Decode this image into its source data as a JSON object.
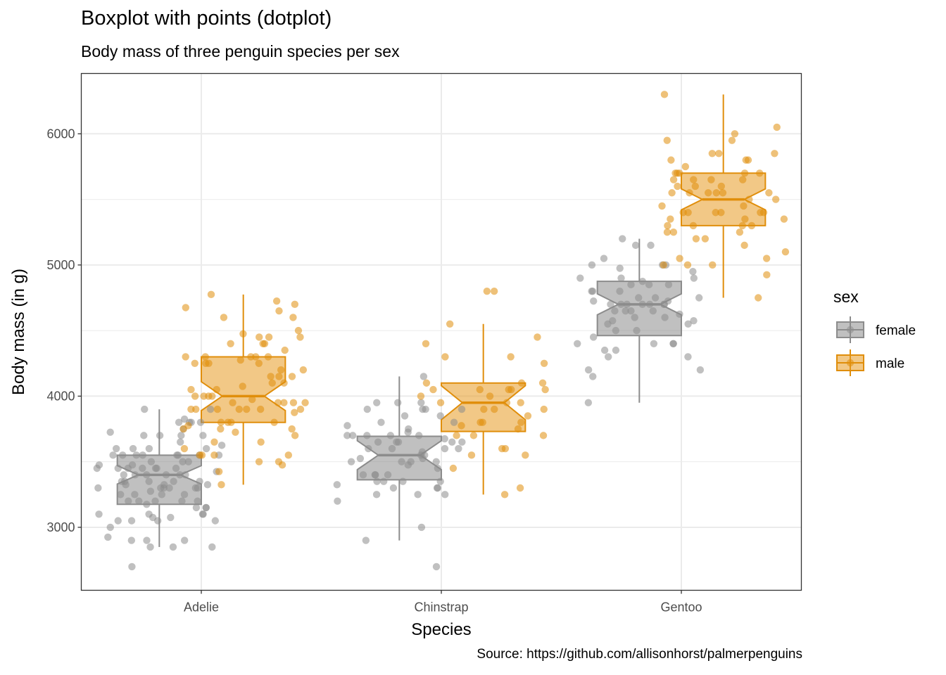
{
  "title": "Boxplot with points (dotplot)",
  "subtitle": "Body mass of three penguin species per sex",
  "caption": "Source: https://github.com/allisonhorst/palmerpenguins",
  "colors": {
    "female": "#8c8c8c",
    "male": "#e08e0b",
    "grid": "#ebebeb",
    "panel_border": "#333333"
  },
  "chart_data": {
    "type": "boxplot",
    "notched": true,
    "with_points": true,
    "xlabel": "Species",
    "ylabel": "Body mass (in g)",
    "categories": [
      "Adelie",
      "Chinstrap",
      "Gentoo"
    ],
    "ylim": [
      2520,
      6460
    ],
    "yticks": [
      3000,
      4000,
      5000,
      6000
    ],
    "grid": true,
    "legend": {
      "title": "sex",
      "position": "right",
      "entries": [
        "female",
        "male"
      ]
    },
    "series": [
      {
        "name": "female",
        "color": "#8c8c8c",
        "boxes": [
          {
            "category": "Adelie",
            "whisker_low": 2850,
            "q1": 3175,
            "median": 3400,
            "q3": 3550,
            "whisker_high": 3900,
            "notch_low": 3330,
            "notch_high": 3470
          },
          {
            "category": "Chinstrap",
            "whisker_low": 2900,
            "q1": 3362,
            "median": 3550,
            "q3": 3694,
            "whisker_high": 4150,
            "notch_low": 3440,
            "notch_high": 3660
          },
          {
            "category": "Gentoo",
            "whisker_low": 3950,
            "q1": 4462,
            "median": 4700,
            "q3": 4875,
            "whisker_high": 5200,
            "notch_low": 4620,
            "notch_high": 4780
          }
        ],
        "points": [
          [
            0,
            [
              3800,
              3250,
              3450,
              3625,
              3200,
              3700,
              3450,
              3325,
              3400,
              3800,
              3800,
              3200,
              3150,
              3250,
              3300,
              3325,
              3550,
              3300,
              3150,
              3100,
              3000,
              3450,
              3500,
              3450,
              2900,
              3550,
              2850,
              3150,
              3600,
              2850,
              3350,
              3050,
              3600,
              3550,
              3700,
              3700,
              3550,
              3200,
              3800,
              3350,
              3500,
              3600,
              3550,
              3400,
              3300,
              3700,
              2900,
              3725,
              3075,
              2925,
              3750,
              3175,
              3825,
              3200,
              3900,
              2900,
              3350,
              3050,
              3275,
              3475,
              3450,
              3550,
              3650,
              3450,
              3475,
              3050,
              3100,
              3400,
              3200,
              3450,
              3325,
              3100,
              3350,
              3250,
              3100,
              3400,
              3075,
              3300,
              3400,
              3600,
              3050,
              3425,
              3350,
              3250,
              3900,
              2850,
              3300,
              3550,
              3550,
              3400,
              3300,
              3500,
              2700
            ]
          ],
          [
            1,
            [
              3500,
              3900,
              3650,
              3525,
              3725,
              3950,
              3250,
              3750,
              4150,
              3700,
              3800,
              3775,
              3700,
              3300,
              3450,
              3400,
              3600,
              2900,
              3300,
              3400,
              3700,
              3200,
              3350,
              3900,
              3850,
              2700,
              3650,
              3500,
              3675,
              3400,
              3325,
              3600,
              3350,
              3250,
              3525,
              3550,
              3950,
              3700,
              3650,
              3575,
              3700,
              3475,
              3400,
              3000,
              3600,
              3950,
              3900,
              3800,
              3350,
              3900,
              3650,
              3500,
              3850,
              3600,
              3550,
              3500,
              3350,
              3300,
              3250,
              3650
            ]
          ],
          [
            2,
            [
              4500,
              4450,
              4550,
              4800,
              4400,
              4650,
              4650,
              4200,
              4150,
              4800,
              5000,
              4400,
              5000,
              4600,
              4700,
              5050,
              5150,
              4950,
              4350,
              3950,
              4300,
              4900,
              4200,
              4350,
              4550,
              4700,
              4750,
              4300,
              4850,
              4650,
              4625,
              4575,
              4700,
              4725,
              4875,
              4700,
              5000,
              4700,
              4725,
              4400,
              4900,
              4800,
              4750,
              4600,
              5200,
              4700,
              4750,
              4850,
              4975,
              4850,
              4650,
              5150,
              4500,
              4900,
              4575,
              4400,
              4700
            ]
          ]
        ]
      },
      {
        "name": "male",
        "color": "#e08e0b",
        "boxes": [
          {
            "category": "Adelie",
            "whisker_low": 3325,
            "q1": 3800,
            "median": 4000,
            "q3": 4300,
            "whisker_high": 4775,
            "notch_low": 3890,
            "notch_high": 4110
          },
          {
            "category": "Chinstrap",
            "whisker_low": 3250,
            "q1": 3731,
            "median": 3950,
            "q3": 4100,
            "whisker_high": 4550,
            "notch_low": 3820,
            "notch_high": 4080
          },
          {
            "category": "Gentoo",
            "whisker_low": 4750,
            "q1": 5300,
            "median": 5500,
            "q3": 5700,
            "whisker_high": 6300,
            "notch_low": 5420,
            "notch_high": 5580
          }
        ],
        "points": [
          [
            0,
            [
              3750,
              3650,
              4675,
              3800,
              4400,
              4500,
              4200,
              3600,
              3950,
              3800,
              3550,
              3950,
              3900,
              3900,
              4150,
              3950,
              4650,
              3900,
              4400,
              4600,
              3425,
              4150,
              4300,
              4450,
              4300,
              4050,
              3700,
              3800,
              3750,
              4400,
              4050,
              3950,
              4100,
              4450,
              3900,
              4150,
              4250,
              3900,
              4000,
              4700,
              4200,
              3550,
              3800,
              3550,
              3950,
              4300,
              4450,
              4300,
              4350,
              4100,
              4725,
              4250,
              3550,
              3900,
              4775,
              4600,
              4275,
              4075,
              3775,
              3325,
              3500,
              3875,
              4000,
              4300,
              4000,
              3500,
              4475,
              3900,
              3975,
              4250,
              3475,
              3725,
              3650,
              4250,
              3750,
              4000
            ]
          ],
          [
            1,
            [
              3900,
              4000,
              3750,
              3700,
              4400,
              4050,
              3950,
              3800,
              4550,
              4300,
              3250,
              4450,
              3550,
              4050,
              4100,
              3600,
              3800,
              3950,
              4800,
              3900,
              4050,
              4300,
              3700,
              3450,
              4100,
              3950,
              3850,
              3800,
              3775,
              4000,
              4050,
              3900,
              4100,
              4800,
              3700,
              3300,
              4050,
              3550,
              4250,
              3600
            ]
          ],
          [
            2,
            [
              5700,
              5700,
              5400,
              5200,
              5150,
              5550,
              5850,
              5850,
              6300,
              5350,
              5700,
              5050,
              5100,
              5650,
              5550,
              5250,
              6050,
              5400,
              5250,
              5350,
              5700,
              4750,
              5550,
              5400,
              5300,
              5300,
              5000,
              5050,
              5000,
              5550,
              5300,
              5650,
              5700,
              5800,
              6000,
              5950,
              5450,
              5350,
              5600,
              5300,
              5550,
              5400,
              5650,
              5200,
              4925,
              5250,
              5600,
              5500,
              5950,
              5500,
              5800,
              5850,
              5450,
              5600,
              5750,
              5800,
              5400,
              5650,
              5000,
              5400,
              5550
            ]
          ]
        ]
      }
    ]
  }
}
